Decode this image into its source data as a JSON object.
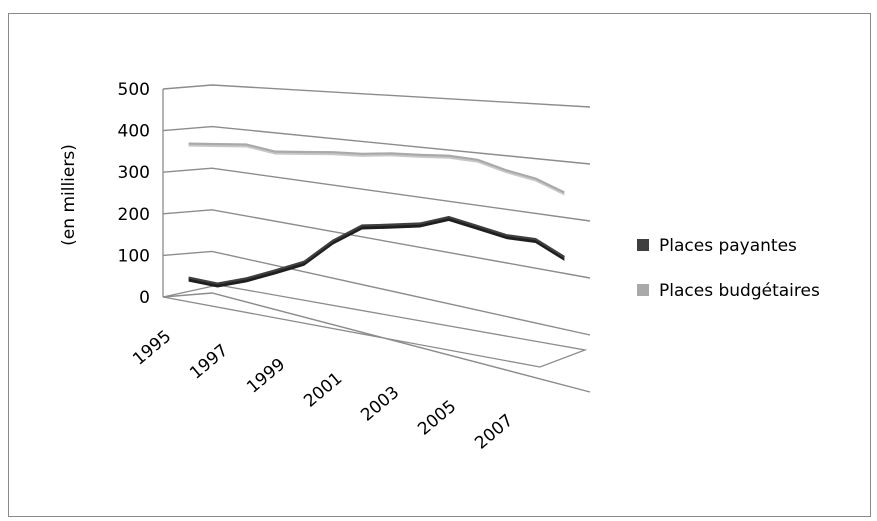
{
  "chart_data": {
    "type": "line",
    "title": "",
    "xlabel": "",
    "ylabel": "(en milliers)",
    "ylim": [
      0,
      500
    ],
    "y_ticks": [
      0,
      100,
      200,
      300,
      400,
      500
    ],
    "x_tick_labels": [
      "1995",
      "1997",
      "1999",
      "2001",
      "2003",
      "2005",
      "2007"
    ],
    "x": [
      1995,
      1996,
      1997,
      1998,
      1999,
      2000,
      2001,
      2002,
      2003,
      2004,
      2005,
      2006,
      2007,
      2008
    ],
    "series": [
      {
        "name": "Places payantes",
        "color": "#3f3f3f",
        "values": [
          45,
          45,
          70,
          100,
          130,
          185,
          225,
          235,
          245,
          265,
          255,
          245,
          245,
          220
        ]
      },
      {
        "name": "Places budgétaires",
        "color": "#a9a9a9",
        "values": [
          360,
          365,
          370,
          360,
          365,
          370,
          372,
          378,
          380,
          383,
          380,
          365,
          355,
          335
        ]
      }
    ],
    "legend": "right",
    "grid": true,
    "style": "3d-perspective"
  }
}
